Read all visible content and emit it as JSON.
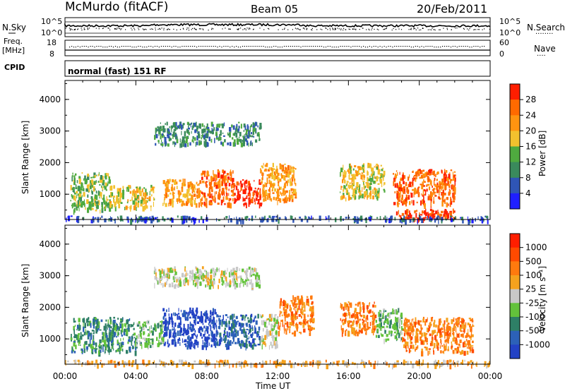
{
  "header": {
    "station": "McMurdo (fitACF)",
    "beam": "Beam 05",
    "date": "20/Feb/2011"
  },
  "top_panels": {
    "nsky_label": "N.Sky",
    "nsearch_label": "N.Search",
    "noise_ticks_left": [
      "10^5",
      "10^0"
    ],
    "noise_ticks_right": [
      "10^5",
      "10^0"
    ],
    "freq_label_1": "Freq.",
    "freq_label_2": "[MHz]",
    "freq_ticks": [
      "18",
      "8"
    ],
    "nave_label": "Nave",
    "nave_ticks": [
      "60",
      "0"
    ],
    "cpid_label": "CPID",
    "cpid_value": "normal (fast) 151 RF"
  },
  "colors": {
    "power_scale": [
      "#1f1fff",
      "#2f55b5",
      "#3a8a5c",
      "#4faa3f",
      "#f2c12e",
      "#ff9410",
      "#ff6a00",
      "#ff1e00"
    ],
    "velocity_scale": [
      "#2342c5",
      "#2c61b8",
      "#2e7f66",
      "#63c23b",
      "#c8c8c8",
      "#f5a21d",
      "#ff7a0e",
      "#ff4a00",
      "#ff1e00"
    ]
  },
  "chart_data": [
    {
      "type": "heatmap",
      "name": "power",
      "ylabel": "Slant Range [km]",
      "xlabel": "",
      "x_ticks": [
        "00:00",
        "04:00",
        "08:00",
        "12:00",
        "16:00",
        "20:00",
        "00:00"
      ],
      "y_ticks": [
        "1000",
        "2000",
        "3000",
        "4000"
      ],
      "ylim": [
        200,
        4600
      ],
      "xlim_hours": [
        0,
        24
      ],
      "colorbar": {
        "label": "Power [dB]",
        "ticks": [
          "28",
          "24",
          "20",
          "16",
          "12",
          "8",
          "4"
        ]
      },
      "regions": [
        {
          "t0": 0.3,
          "t1": 2.5,
          "r0": 500,
          "r1": 1700,
          "level": 3
        },
        {
          "t0": 2.5,
          "t1": 5.0,
          "r0": 600,
          "r1": 1300,
          "level": 4
        },
        {
          "t0": 5.5,
          "t1": 7.5,
          "r0": 700,
          "r1": 1500,
          "level": 5
        },
        {
          "t0": 7.5,
          "t1": 9.5,
          "r0": 700,
          "r1": 1800,
          "level": 6
        },
        {
          "t0": 9.5,
          "t1": 11.0,
          "r0": 700,
          "r1": 1500,
          "level": 7
        },
        {
          "t0": 11.0,
          "t1": 13.0,
          "r0": 800,
          "r1": 2000,
          "level": 5
        },
        {
          "t0": 15.5,
          "t1": 18.0,
          "r0": 900,
          "r1": 2000,
          "level": 4
        },
        {
          "t0": 18.5,
          "t1": 22.0,
          "r0": 700,
          "r1": 1800,
          "level": 6
        },
        {
          "t0": 18.5,
          "t1": 22.0,
          "r0": 250,
          "r1": 550,
          "level": 7
        },
        {
          "t0": 0.0,
          "t1": 24.0,
          "r0": 200,
          "r1": 330,
          "level": 1
        },
        {
          "t0": 5.0,
          "t1": 11.0,
          "r0": 2600,
          "r1": 3300,
          "level": 2
        }
      ]
    },
    {
      "type": "heatmap",
      "name": "velocity",
      "ylabel": "Slant Range [km]",
      "xlabel": "Time UT",
      "x_ticks": [
        "00:00",
        "04:00",
        "08:00",
        "12:00",
        "16:00",
        "20:00",
        "00:00"
      ],
      "y_ticks": [
        "1000",
        "2000",
        "3000",
        "4000"
      ],
      "ylim": [
        200,
        4600
      ],
      "xlim_hours": [
        0,
        24
      ],
      "colorbar": {
        "label": "Velocity [m s⁻¹]",
        "ticks": [
          "1000",
          "500",
          "100",
          "25",
          "-25",
          "-100",
          "-500",
          "-1000"
        ]
      },
      "regions": [
        {
          "t0": 0.3,
          "t1": 4.0,
          "r0": 600,
          "r1": 1700,
          "level": 2
        },
        {
          "t0": 4.0,
          "t1": 5.5,
          "r0": 800,
          "r1": 1600,
          "level": 3
        },
        {
          "t0": 5.5,
          "t1": 8.5,
          "r0": 800,
          "r1": 2000,
          "level": 0
        },
        {
          "t0": 8.5,
          "t1": 11.0,
          "r0": 800,
          "r1": 1800,
          "level": 1
        },
        {
          "t0": 11.0,
          "t1": 12.0,
          "r0": 800,
          "r1": 1800,
          "level": 4
        },
        {
          "t0": 12.0,
          "t1": 14.0,
          "r0": 1200,
          "r1": 2400,
          "level": 6
        },
        {
          "t0": 15.5,
          "t1": 17.5,
          "r0": 1200,
          "r1": 2200,
          "level": 6
        },
        {
          "t0": 17.5,
          "t1": 19.0,
          "r0": 1000,
          "r1": 2000,
          "level": 3
        },
        {
          "t0": 19.0,
          "t1": 23.0,
          "r0": 600,
          "r1": 1700,
          "level": 6
        },
        {
          "t0": 0.0,
          "t1": 24.0,
          "r0": 200,
          "r1": 350,
          "level": 5
        },
        {
          "t0": 5.0,
          "t1": 11.0,
          "r0": 2700,
          "r1": 3300,
          "level": 4
        }
      ]
    }
  ]
}
